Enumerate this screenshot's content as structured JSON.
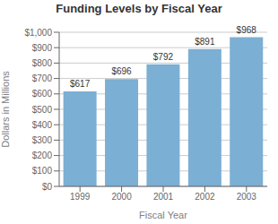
{
  "chart_data": {
    "type": "bar",
    "title": "Funding Levels by Fiscal Year",
    "x_label": "Fiscal Year",
    "y_label": "Dollars in Millions",
    "categories": [
      "1999",
      "2000",
      "2001",
      "2002",
      "2003"
    ],
    "values": [
      617,
      696,
      792,
      891,
      968
    ],
    "value_labels": [
      "$617",
      "$696",
      "$792",
      "$891",
      "$968"
    ],
    "data_labels": true,
    "color": "#7BAFD4",
    "ylim": [
      0,
      1000
    ],
    "yticks": [
      {
        "value": 0,
        "label": "$0"
      },
      {
        "value": 100,
        "label": "$100"
      },
      {
        "value": 200,
        "label": "$200"
      },
      {
        "value": 300,
        "label": "$300"
      },
      {
        "value": 400,
        "label": "$400"
      },
      {
        "value": 500,
        "label": "$500"
      },
      {
        "value": 600,
        "label": "$600"
      },
      {
        "value": 700,
        "label": "$700"
      },
      {
        "value": 800,
        "label": "$800"
      },
      {
        "value": 900,
        "label": "$900"
      },
      {
        "value": 1000,
        "label": "$1,000"
      }
    ],
    "grid": true
  }
}
